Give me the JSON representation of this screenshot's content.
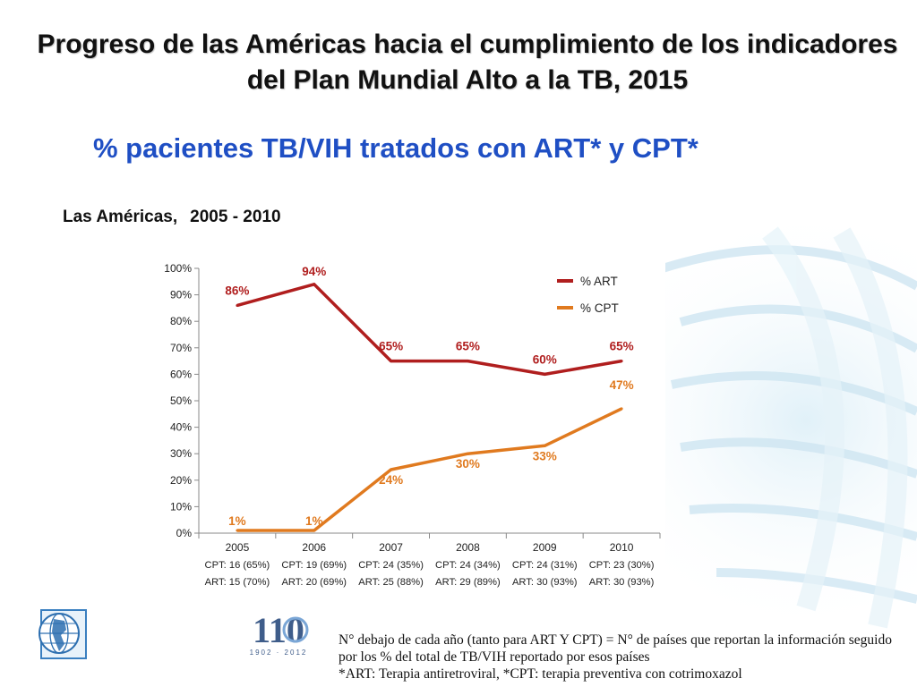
{
  "slide": {
    "title": "Progreso de las Américas hacia el cumplimiento de los indicadores del Plan Mundial Alto a la TB, 2015",
    "subtitle": "% pacientes TB/VIH tratados con ART* y CPT*",
    "region_label": "Las Américas,",
    "period_label": "2005 - 2010",
    "footnote_line1": "N° debajo de cada año (tanto para ART Y CPT) = N° de países que reportan la información seguido por los % del total de TB/VIH reportado por esos países",
    "footnote_line2": "*ART: Terapia antiretroviral, *CPT: terapia preventiva con cotrimoxazol",
    "anniversary_logo_number": "110",
    "anniversary_logo_years": "1902 · 2012"
  },
  "colors": {
    "art": "#b01e1e",
    "cpt": "#e07a1f",
    "subtitle": "#1f4fc4",
    "background_swirl": "#cfe6f2"
  },
  "chart_data": {
    "type": "line",
    "categories": [
      "2005",
      "2006",
      "2007",
      "2008",
      "2009",
      "2010"
    ],
    "series": [
      {
        "name": "% ART",
        "values": [
          86,
          94,
          65,
          65,
          60,
          65
        ],
        "labels": [
          "86%",
          "94%",
          "65%",
          "65%",
          "60%",
          "65%"
        ],
        "color": "#b01e1e"
      },
      {
        "name": "% CPT",
        "values": [
          1,
          1,
          24,
          30,
          33,
          47
        ],
        "labels": [
          "1%",
          "1%",
          "24%",
          "30%",
          "33%",
          "47%"
        ],
        "color": "#e07a1f"
      }
    ],
    "y_ticks": [
      "0%",
      "10%",
      "20%",
      "30%",
      "40%",
      "50%",
      "60%",
      "70%",
      "80%",
      "90%",
      "100%"
    ],
    "ylim": [
      0,
      100
    ],
    "grid": false,
    "legend_position": "top-right",
    "category_notes": [
      {
        "cpt": "CPT:  16 (65%)",
        "art": "ART:  15 (70%)"
      },
      {
        "cpt": "CPT:  19 (69%)",
        "art": "ART:  20 (69%)"
      },
      {
        "cpt": "CPT:  24 (35%)",
        "art": "ART:  25 (88%)"
      },
      {
        "cpt": "CPT:  24 (34%)",
        "art": "ART:  29 (89%)"
      },
      {
        "cpt": "CPT:  24 (31%)",
        "art": "ART:  30 (93%)"
      },
      {
        "cpt": "CPT:  23 (30%)",
        "art": "ART:  30 (93%)"
      }
    ]
  }
}
